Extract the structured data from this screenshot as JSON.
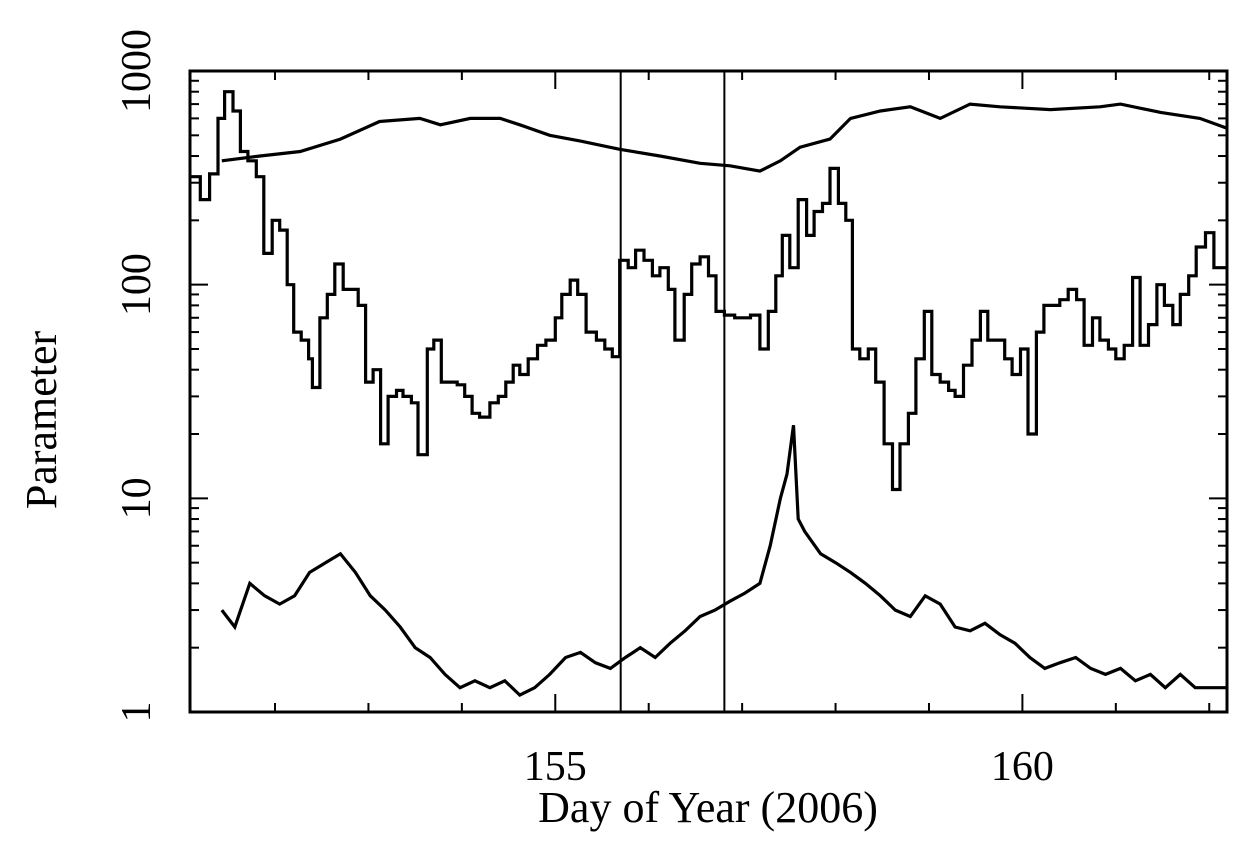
{
  "chart_data": {
    "type": "line",
    "xlabel": "Day of Year (2006)",
    "ylabel": "Parameter",
    "xlim": [
      151.09,
      162.19
    ],
    "xticks": [
      155,
      160
    ],
    "minor_xticks": [
      152,
      153,
      154,
      156,
      157,
      158,
      159,
      161,
      162
    ],
    "ylim": [
      1,
      1000
    ],
    "yticks": [
      1,
      10,
      100,
      1000
    ],
    "minor_yticks": [
      2,
      3,
      4,
      5,
      6,
      7,
      8,
      9,
      20,
      30,
      40,
      50,
      60,
      70,
      80,
      90,
      200,
      300,
      400,
      500,
      600,
      700,
      800,
      900
    ],
    "log_y": true,
    "vlines": [
      155.7,
      156.81
    ],
    "series": [
      {
        "style": "line",
        "color": "#000000",
        "x": [
          151.43,
          151.84,
          152.27,
          152.7,
          153.12,
          153.55,
          153.77,
          154.09,
          154.41,
          154.62,
          154.94,
          155.27,
          155.69,
          156.12,
          156.55,
          156.87,
          157.19,
          157.41,
          157.62,
          157.94,
          158.16,
          158.48,
          158.8,
          159.12,
          159.44,
          159.76,
          160.3,
          160.83,
          161.05,
          161.48,
          161.9,
          162.19
        ],
        "values": [
          380,
          400,
          420,
          480,
          580,
          600,
          560,
          600,
          600,
          560,
          500,
          470,
          430,
          400,
          370,
          360,
          340,
          380,
          440,
          480,
          600,
          650,
          680,
          600,
          700,
          680,
          660,
          680,
          700,
          640,
          600,
          540
        ]
      },
      {
        "style": "step",
        "color": "#000000",
        "x": [
          151.09,
          151.2,
          151.3,
          151.39,
          151.46,
          151.55,
          151.63,
          151.71,
          151.8,
          151.88,
          151.97,
          152.05,
          152.13,
          152.2,
          152.28,
          152.36,
          152.4,
          152.48,
          152.56,
          152.64,
          152.73,
          152.8,
          152.89,
          152.97,
          153.05,
          153.13,
          153.21,
          153.3,
          153.37,
          153.46,
          153.53,
          153.63,
          153.7,
          153.78,
          153.86,
          153.95,
          154.03,
          154.11,
          154.19,
          154.3,
          154.39,
          154.47,
          154.55,
          154.62,
          154.71,
          154.81,
          154.9,
          155.0,
          155.07,
          155.16,
          155.24,
          155.33,
          155.44,
          155.53,
          155.61,
          155.69,
          155.78,
          155.86,
          155.95,
          156.04,
          156.12,
          156.21,
          156.28,
          156.38,
          156.46,
          156.55,
          156.64,
          156.72,
          156.81,
          156.92,
          157.09,
          157.19,
          157.28,
          157.36,
          157.43,
          157.51,
          157.6,
          157.69,
          157.77,
          157.86,
          157.94,
          158.03,
          158.11,
          158.18,
          158.26,
          158.35,
          158.43,
          158.52,
          158.61,
          158.69,
          158.78,
          158.86,
          158.95,
          159.03,
          159.12,
          159.21,
          159.28,
          159.37,
          159.46,
          159.55,
          159.63,
          159.72,
          159.81,
          159.89,
          159.98,
          160.06,
          160.15,
          160.23,
          160.32,
          160.4,
          160.49,
          160.58,
          160.66,
          160.75,
          160.83,
          160.92,
          161.0,
          161.09,
          161.18,
          161.26,
          161.35,
          161.44,
          161.52,
          161.61,
          161.69,
          161.78,
          161.86,
          161.96,
          162.05,
          162.14
        ],
        "values": [
          320,
          250,
          330,
          600,
          800,
          650,
          420,
          380,
          320,
          140,
          200,
          180,
          100,
          60,
          55,
          45,
          33,
          70,
          90,
          125,
          95,
          95,
          80,
          35,
          40,
          18,
          30,
          32,
          30,
          28,
          16,
          50,
          55,
          35,
          35,
          34,
          30,
          25,
          24,
          28,
          30,
          35,
          42,
          38,
          45,
          52,
          55,
          70,
          90,
          105,
          90,
          60,
          55,
          50,
          46,
          130,
          120,
          145,
          130,
          110,
          120,
          95,
          55,
          90,
          125,
          135,
          110,
          75,
          72,
          70,
          72,
          50,
          75,
          110,
          170,
          120,
          250,
          170,
          220,
          240,
          350,
          240,
          200,
          50,
          45,
          50,
          35,
          18,
          11,
          18,
          25,
          45,
          75,
          38,
          35,
          32,
          30,
          42,
          55,
          75,
          55,
          55,
          45,
          38,
          50,
          20,
          60,
          80,
          80,
          85,
          95,
          85,
          52,
          70,
          55,
          50,
          45,
          52,
          108,
          52,
          65,
          100,
          80,
          65,
          90,
          110,
          150,
          175,
          120,
          120
        ]
      },
      {
        "style": "line",
        "color": "#000000",
        "x": [
          151.43,
          151.57,
          151.73,
          151.89,
          152.05,
          152.21,
          152.37,
          152.54,
          152.7,
          152.86,
          153.02,
          153.18,
          153.34,
          153.5,
          153.66,
          153.82,
          153.98,
          154.14,
          154.3,
          154.46,
          154.62,
          154.78,
          154.94,
          155.11,
          155.27,
          155.43,
          155.59,
          155.75,
          155.91,
          156.07,
          156.23,
          156.39,
          156.55,
          156.71,
          156.87,
          157.03,
          157.19,
          157.3,
          157.41,
          157.48,
          157.55,
          157.6,
          157.67,
          157.84,
          158.0,
          158.16,
          158.32,
          158.48,
          158.64,
          158.8,
          158.96,
          159.12,
          159.28,
          159.44,
          159.6,
          159.76,
          159.92,
          160.08,
          160.24,
          160.4,
          160.57,
          160.73,
          160.89,
          161.05,
          161.21,
          161.37,
          161.53,
          161.69,
          161.85,
          162.01,
          162.19
        ],
        "values": [
          3.0,
          2.5,
          4,
          3.5,
          3.2,
          3.5,
          4.5,
          5,
          5.5,
          4.5,
          3.5,
          3,
          2.5,
          2,
          1.8,
          1.5,
          1.3,
          1.4,
          1.3,
          1.4,
          1.2,
          1.3,
          1.5,
          1.8,
          1.9,
          1.7,
          1.6,
          1.8,
          2.0,
          1.8,
          2.1,
          2.4,
          2.8,
          3.0,
          3.3,
          3.6,
          4.0,
          6,
          10,
          13,
          22,
          8,
          7,
          5.5,
          5,
          4.5,
          4,
          3.5,
          3,
          2.8,
          3.5,
          3.2,
          2.5,
          2.4,
          2.6,
          2.3,
          2.1,
          1.8,
          1.6,
          1.7,
          1.8,
          1.6,
          1.5,
          1.6,
          1.4,
          1.5,
          1.3,
          1.5,
          1.3,
          1.3,
          1.3
        ]
      }
    ]
  }
}
